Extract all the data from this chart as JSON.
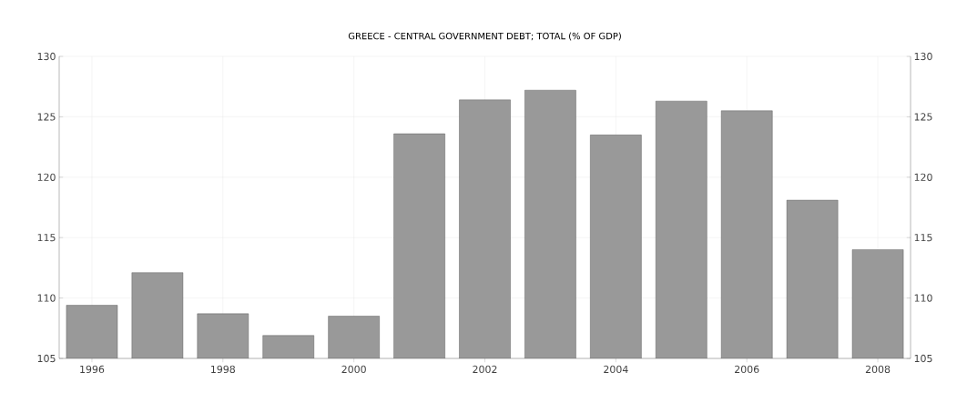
{
  "chart_data": {
    "type": "bar",
    "title": "GREECE - CENTRAL GOVERNMENT DEBT; TOTAL (% OF GDP)",
    "categories": [
      "1996",
      null,
      "1998",
      null,
      "2000",
      null,
      "2002",
      null,
      "2004",
      null,
      "2006",
      null,
      "2008"
    ],
    "values": [
      109.4,
      112.1,
      108.7,
      106.9,
      108.5,
      123.6,
      126.4,
      127.2,
      123.5,
      126.3,
      125.5,
      118.1,
      114.0
    ],
    "color": "#999999",
    "ylim": [
      105,
      130
    ],
    "yticks": [
      105,
      110,
      115,
      120,
      125,
      130
    ],
    "y2lim": [
      105,
      130
    ],
    "y2ticks": [
      105,
      110,
      115,
      120,
      125,
      130
    ],
    "grid": true
  }
}
